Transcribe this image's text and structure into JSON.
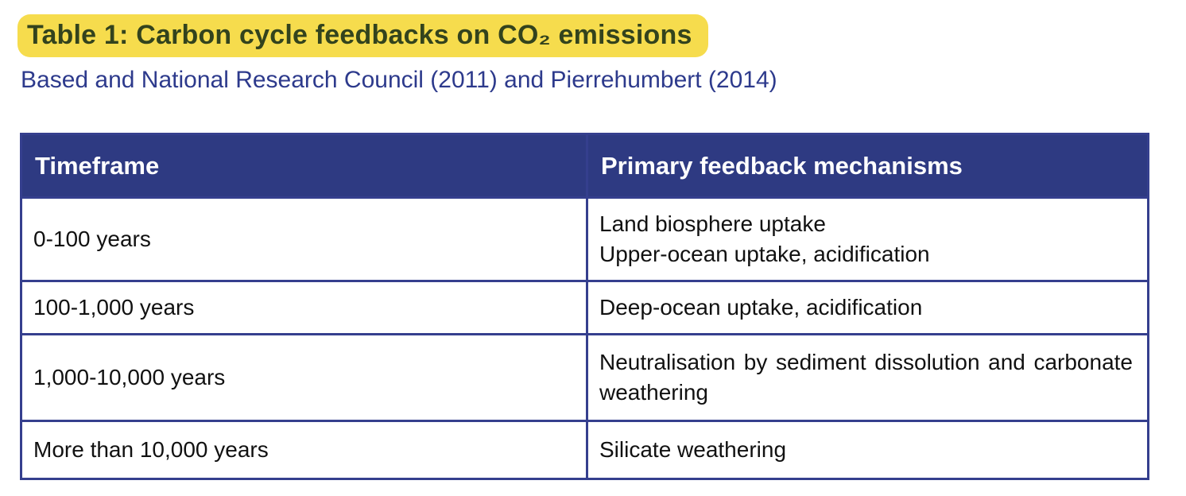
{
  "header": {
    "title": "Table 1: Carbon cycle feedbacks on CO₂ emissions",
    "subtitle": "Based and National Research Council (2011) and Pierrehumbert (2014)"
  },
  "colors": {
    "highlight": "#F6DC4D",
    "title_text": "#33431D",
    "subtitle_text": "#2D3A8C",
    "header_bg": "#2E3A82",
    "header_text": "#FFFFFF",
    "border": "#353F8E",
    "cell_text": "#111111"
  },
  "table": {
    "columns": [
      "Timeframe",
      "Primary feedback mechanisms"
    ],
    "rows": [
      {
        "timeframe": "0-100 years",
        "mechanisms": [
          "Land biosphere uptake",
          "Upper-ocean uptake, acidification"
        ],
        "justify": false
      },
      {
        "timeframe": "100-1,000 years",
        "mechanisms": [
          "Deep-ocean uptake, acidification"
        ],
        "justify": false
      },
      {
        "timeframe": "1,000-10,000 years",
        "mechanisms": [
          "Neutralisation by sediment dissolution and carbonate weathering"
        ],
        "justify": true
      },
      {
        "timeframe": "More than 10,000 years",
        "mechanisms": [
          "Silicate weathering"
        ],
        "justify": false
      }
    ]
  }
}
